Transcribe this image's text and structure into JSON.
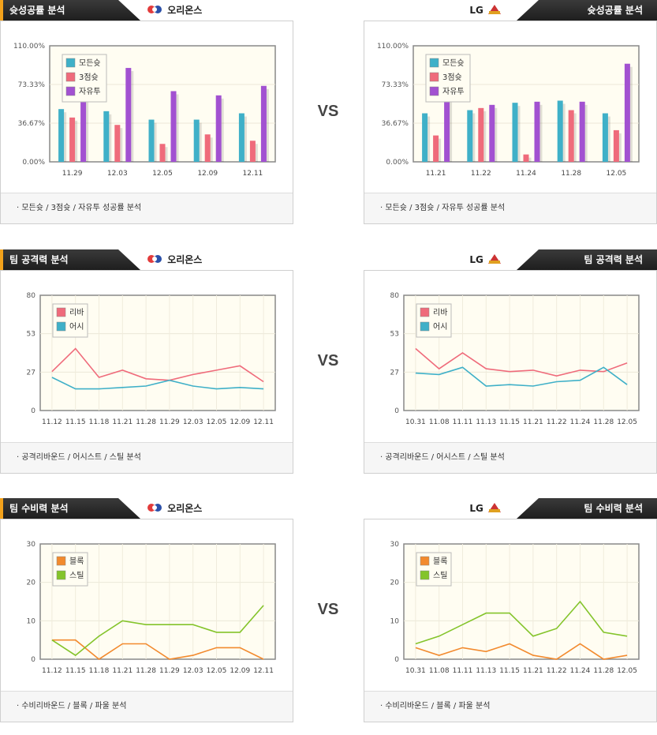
{
  "vs_label": "VS",
  "left_team": "오리온스",
  "right_team": "LG",
  "sections": [
    {
      "title": "슛성공률 분석",
      "footer": "·  모든슛 / 3점슛 / 자유투 성공률 분석",
      "charts": [
        {
          "type": "bar",
          "categories": [
            "11.29",
            "12.03",
            "12.05",
            "12.09",
            "12.11"
          ],
          "yticks": [
            "110.00%",
            "73.33%",
            "36.67%",
            "0.00%"
          ],
          "ylim": [
            0,
            110
          ],
          "series": [
            {
              "name": "모든슛",
              "color": "#3fb0c8",
              "values": [
                50,
                48,
                40,
                40,
                46
              ]
            },
            {
              "name": "3점슛",
              "color": "#ef6b7b",
              "values": [
                42,
                35,
                17,
                26,
                20
              ]
            },
            {
              "name": "자유투",
              "color": "#a251d1",
              "values": [
                63,
                89,
                67,
                63,
                72
              ]
            }
          ]
        },
        {
          "type": "bar",
          "categories": [
            "11.21",
            "11.22",
            "11.24",
            "11.28",
            "12.05"
          ],
          "yticks": [
            "110.00%",
            "73.33%",
            "36.67%",
            "0.00%"
          ],
          "ylim": [
            0,
            110
          ],
          "series": [
            {
              "name": "모든슛",
              "color": "#3fb0c8",
              "values": [
                46,
                49,
                56,
                58,
                46
              ]
            },
            {
              "name": "3점슛",
              "color": "#ef6b7b",
              "values": [
                25,
                51,
                7,
                49,
                30
              ]
            },
            {
              "name": "자유투",
              "color": "#a251d1",
              "values": [
                63,
                54,
                57,
                57,
                93
              ]
            }
          ]
        }
      ]
    },
    {
      "title": "팀 공격력 분석",
      "footer": "·  공격리바운드 / 어시스트 / 스틸 분석",
      "charts": [
        {
          "type": "line",
          "categories": [
            "11.12",
            "11.15",
            "11.18",
            "11.21",
            "11.28",
            "11.29",
            "12.03",
            "12.05",
            "12.09",
            "12.11"
          ],
          "yticks": [
            "80",
            "53",
            "27",
            "0"
          ],
          "ylim": [
            0,
            80
          ],
          "series": [
            {
              "name": "리바",
              "color": "#ef6b7b",
              "values": [
                27,
                43,
                23,
                28,
                22,
                21,
                25,
                28,
                31,
                20
              ]
            },
            {
              "name": "어시",
              "color": "#3fb0c8",
              "values": [
                23,
                15,
                15,
                16,
                17,
                21,
                17,
                15,
                16,
                15
              ]
            }
          ]
        },
        {
          "type": "line",
          "categories": [
            "10.31",
            "11.08",
            "11.11",
            "11.13",
            "11.15",
            "11.21",
            "11.22",
            "11.24",
            "11.28",
            "12.05"
          ],
          "yticks": [
            "80",
            "53",
            "27",
            "0"
          ],
          "ylim": [
            0,
            80
          ],
          "series": [
            {
              "name": "리바",
              "color": "#ef6b7b",
              "values": [
                43,
                29,
                40,
                29,
                27,
                28,
                24,
                28,
                27,
                33
              ]
            },
            {
              "name": "어시",
              "color": "#3fb0c8",
              "values": [
                26,
                25,
                30,
                17,
                18,
                17,
                20,
                21,
                30,
                18
              ]
            }
          ]
        }
      ]
    },
    {
      "title": "팀 수비력 분석",
      "footer": "·  수비리바운드 / 블록 / 파울 분석",
      "charts": [
        {
          "type": "line",
          "categories": [
            "11.12",
            "11.15",
            "11.18",
            "11.21",
            "11.28",
            "11.29",
            "12.03",
            "12.05",
            "12.09",
            "12.11"
          ],
          "yticks": [
            "30",
            "20",
            "10",
            "0"
          ],
          "ylim": [
            0,
            30
          ],
          "series": [
            {
              "name": "블록",
              "color": "#f28a2e",
              "values": [
                5,
                5,
                0,
                4,
                4,
                0,
                1,
                3,
                3,
                0
              ]
            },
            {
              "name": "스틸",
              "color": "#84c42b",
              "values": [
                5,
                1,
                6,
                10,
                9,
                9,
                9,
                7,
                7,
                14
              ]
            }
          ]
        },
        {
          "type": "line",
          "categories": [
            "10.31",
            "11.08",
            "11.11",
            "11.13",
            "11.15",
            "11.21",
            "11.22",
            "11.24",
            "11.28",
            "12.05"
          ],
          "yticks": [
            "30",
            "20",
            "10",
            "0"
          ],
          "ylim": [
            0,
            30
          ],
          "series": [
            {
              "name": "블록",
              "color": "#f28a2e",
              "values": [
                3,
                1,
                3,
                2,
                4,
                1,
                0,
                4,
                0,
                1
              ]
            },
            {
              "name": "스틸",
              "color": "#84c42b",
              "values": [
                4,
                6,
                9,
                12,
                12,
                6,
                8,
                15,
                7,
                6
              ]
            }
          ]
        }
      ]
    }
  ]
}
